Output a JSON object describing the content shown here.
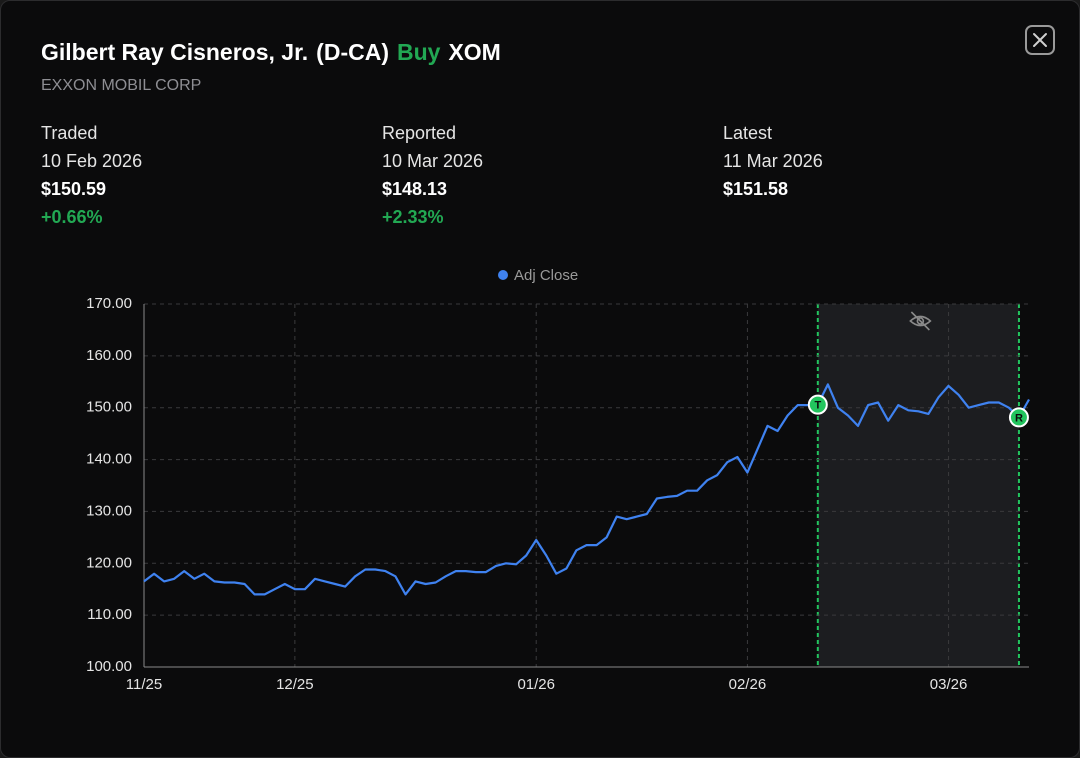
{
  "header": {
    "name": "Gilbert Ray Cisneros, Jr.",
    "party": "(D-CA)",
    "action": "Buy",
    "ticker": "XOM",
    "company": "EXXON MOBIL CORP"
  },
  "stats": [
    {
      "label": "Traded",
      "date": "10 Feb 2026",
      "price": "$150.59",
      "change": "+0.66%"
    },
    {
      "label": "Reported",
      "date": "10 Mar 2026",
      "price": "$148.13",
      "change": "+2.33%"
    },
    {
      "label": "Latest",
      "date": "11 Mar 2026",
      "price": "$151.58"
    }
  ],
  "chart_data": {
    "type": "line",
    "categories": [
      "11/25",
      null,
      null,
      null,
      null,
      null,
      null,
      null,
      null,
      null,
      null,
      null,
      null,
      null,
      null,
      "12/25",
      null,
      null,
      null,
      null,
      null,
      null,
      null,
      null,
      null,
      null,
      null,
      null,
      null,
      null,
      null,
      null,
      null,
      null,
      null,
      null,
      null,
      null,
      null,
      "01/26",
      null,
      null,
      null,
      null,
      null,
      null,
      null,
      null,
      null,
      null,
      null,
      null,
      null,
      null,
      null,
      null,
      null,
      null,
      null,
      null,
      "02/26",
      null,
      null,
      null,
      null,
      null,
      null,
      null,
      null,
      null,
      null,
      null,
      null,
      null,
      null,
      null,
      null,
      null,
      null,
      null,
      "03/26",
      null,
      null,
      null,
      null,
      null,
      null,
      null,
      null
    ],
    "series": [
      {
        "name": "Adj Close",
        "color": "#3f82f0",
        "values": [
          116.5,
          118,
          116.5,
          117,
          118.5,
          117,
          118,
          116.5,
          116.3,
          116.3,
          116,
          114,
          114,
          115,
          116,
          115,
          115,
          117,
          116.5,
          116,
          115.5,
          117.5,
          118.8,
          118.8,
          118.5,
          117.5,
          114,
          116.5,
          116,
          116.3,
          117.5,
          118.5,
          118.5,
          118.3,
          118.3,
          119.5,
          120,
          119.8,
          121.5,
          124.5,
          121.5,
          118,
          119,
          122.5,
          123.5,
          123.5,
          125,
          129,
          128.5,
          129,
          129.5,
          132.5,
          132.8,
          133,
          134,
          134,
          136,
          137,
          139.5,
          140.5,
          137.5,
          142,
          146.5,
          145.5,
          148.5,
          150.5,
          150.5,
          150.59,
          154.5,
          150,
          148.5,
          146.5,
          150.5,
          151,
          147.5,
          150.5,
          149.5,
          149.3,
          148.8,
          152,
          154.2,
          152.5,
          150,
          150.5,
          151,
          151,
          150,
          148.13,
          151.58
        ]
      }
    ],
    "markers": [
      {
        "label": "T",
        "index": 67
      },
      {
        "label": "R",
        "index": 87
      }
    ],
    "ylim": [
      100,
      170
    ],
    "yticks": [
      {
        "value": 100,
        "label": "100.00"
      },
      {
        "value": 110,
        "label": "110.00"
      },
      {
        "value": 120,
        "label": "120.00"
      },
      {
        "value": 130,
        "label": "130.00"
      },
      {
        "value": 140,
        "label": "140.00"
      },
      {
        "value": 150,
        "label": "150.00"
      },
      {
        "value": 160,
        "label": "160.00"
      },
      {
        "value": 170,
        "label": "170.00"
      }
    ],
    "grid": true,
    "legend": "top"
  }
}
